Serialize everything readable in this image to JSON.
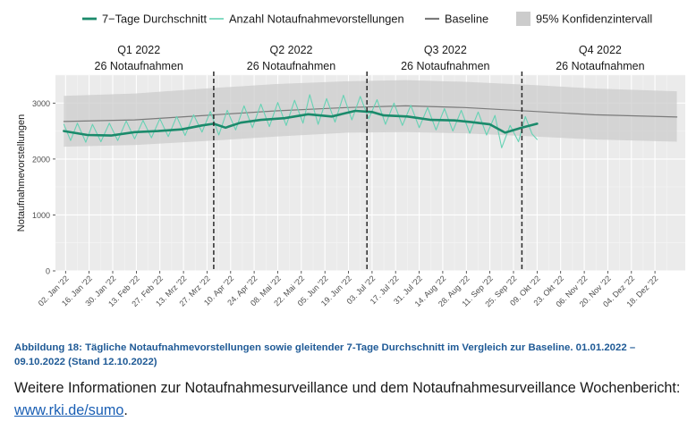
{
  "chart_data": {
    "type": "line",
    "ylabel": "Notaufnahmevorstellungen",
    "ylim": [
      0,
      3500
    ],
    "yticks": [
      0,
      1000,
      2000,
      3000
    ],
    "xlim": [
      "2021-12-27",
      "2023-01-05"
    ],
    "xticks": [
      {
        "date": "2022-01-02",
        "label": "02. Jan '22"
      },
      {
        "date": "2022-01-16",
        "label": "16. Jan '22"
      },
      {
        "date": "2022-01-30",
        "label": "30. Jan '22"
      },
      {
        "date": "2022-02-13",
        "label": "13. Feb '22"
      },
      {
        "date": "2022-02-27",
        "label": "27. Feb '22"
      },
      {
        "date": "2022-03-13",
        "label": "13. Mrz '22"
      },
      {
        "date": "2022-03-27",
        "label": "27. Mrz '22"
      },
      {
        "date": "2022-04-10",
        "label": "10. Apr '22"
      },
      {
        "date": "2022-04-24",
        "label": "24. Apr '22"
      },
      {
        "date": "2022-05-08",
        "label": "08. Mai '22"
      },
      {
        "date": "2022-05-22",
        "label": "22. Mai '22"
      },
      {
        "date": "2022-06-05",
        "label": "05. Jun '22"
      },
      {
        "date": "2022-06-19",
        "label": "19. Jun '22"
      },
      {
        "date": "2022-07-03",
        "label": "03. Jul '22"
      },
      {
        "date": "2022-07-17",
        "label": "17. Jul '22"
      },
      {
        "date": "2022-07-31",
        "label": "31. Jul '22"
      },
      {
        "date": "2022-08-14",
        "label": "14. Aug '22"
      },
      {
        "date": "2022-08-28",
        "label": "28. Aug '22"
      },
      {
        "date": "2022-09-11",
        "label": "11. Sep '22"
      },
      {
        "date": "2022-09-25",
        "label": "25. Sep '22"
      },
      {
        "date": "2022-10-09",
        "label": "09. Okt '22"
      },
      {
        "date": "2022-10-23",
        "label": "23. Okt '22"
      },
      {
        "date": "2022-11-06",
        "label": "06. Nov '22"
      },
      {
        "date": "2022-11-20",
        "label": "20. Nov '22"
      },
      {
        "date": "2022-12-04",
        "label": "04. Dez '22"
      },
      {
        "date": "2022-12-18",
        "label": "18. Dez '22"
      }
    ],
    "legend": {
      "placement": "top",
      "entries": [
        {
          "label": "7−Tage Durchschnitt",
          "color": "#1b8a6b"
        },
        {
          "label": "Anzahl Notaufnahmevorstellungen",
          "color": "#66d2b4"
        },
        {
          "label": "Baseline",
          "color": "#7a7a7a"
        },
        {
          "label": "95% Konfidenzintervall",
          "color": "#cccccc"
        }
      ]
    },
    "quarters": [
      {
        "title": "Q1 2022",
        "subtitle": "26 Notaufnahmen",
        "start": "2022-01-01",
        "end": "2022-03-31"
      },
      {
        "title": "Q2 2022",
        "subtitle": "26 Notaufnahmen",
        "start": "2022-04-01",
        "end": "2022-06-30"
      },
      {
        "title": "Q3 2022",
        "subtitle": "26 Notaufnahmen",
        "start": "2022-07-01",
        "end": "2022-09-30"
      },
      {
        "title": "Q4 2022",
        "subtitle": "26 Notaufnahmen",
        "start": "2022-10-01",
        "end": "2022-12-31"
      }
    ],
    "quarter_dividers": [
      "2022-03-31",
      "2022-06-30",
      "2022-09-30"
    ],
    "series": [
      {
        "name": "7−Tage Durchschnitt",
        "color": "#1b8a6b",
        "points": [
          [
            "2022-01-01",
            2500
          ],
          [
            "2022-01-15",
            2430
          ],
          [
            "2022-01-29",
            2420
          ],
          [
            "2022-02-12",
            2480
          ],
          [
            "2022-02-26",
            2500
          ],
          [
            "2022-03-12",
            2530
          ],
          [
            "2022-03-24",
            2600
          ],
          [
            "2022-03-31",
            2630
          ],
          [
            "2022-04-07",
            2560
          ],
          [
            "2022-04-16",
            2650
          ],
          [
            "2022-04-28",
            2700
          ],
          [
            "2022-05-12",
            2730
          ],
          [
            "2022-05-26",
            2800
          ],
          [
            "2022-06-09",
            2760
          ],
          [
            "2022-06-23",
            2860
          ],
          [
            "2022-07-03",
            2840
          ],
          [
            "2022-07-10",
            2780
          ],
          [
            "2022-07-24",
            2760
          ],
          [
            "2022-08-07",
            2700
          ],
          [
            "2022-08-21",
            2690
          ],
          [
            "2022-08-31",
            2660
          ],
          [
            "2022-09-11",
            2620
          ],
          [
            "2022-09-20",
            2470
          ],
          [
            "2022-09-30",
            2560
          ],
          [
            "2022-10-09",
            2630
          ]
        ]
      },
      {
        "name": "Anzahl Notaufnahmevorstellungen",
        "color": "#66d2b4",
        "points": [
          [
            "2022-01-01",
            2620
          ],
          [
            "2022-01-05",
            2330
          ],
          [
            "2022-01-09",
            2640
          ],
          [
            "2022-01-14",
            2300
          ],
          [
            "2022-01-18",
            2620
          ],
          [
            "2022-01-23",
            2310
          ],
          [
            "2022-01-28",
            2640
          ],
          [
            "2022-02-02",
            2330
          ],
          [
            "2022-02-07",
            2680
          ],
          [
            "2022-02-12",
            2360
          ],
          [
            "2022-02-17",
            2690
          ],
          [
            "2022-02-22",
            2380
          ],
          [
            "2022-02-27",
            2720
          ],
          [
            "2022-03-04",
            2400
          ],
          [
            "2022-03-09",
            2760
          ],
          [
            "2022-03-14",
            2420
          ],
          [
            "2022-03-19",
            2790
          ],
          [
            "2022-03-24",
            2480
          ],
          [
            "2022-03-29",
            2850
          ],
          [
            "2022-04-03",
            2430
          ],
          [
            "2022-04-08",
            2870
          ],
          [
            "2022-04-13",
            2520
          ],
          [
            "2022-04-18",
            2950
          ],
          [
            "2022-04-23",
            2560
          ],
          [
            "2022-04-28",
            2980
          ],
          [
            "2022-05-03",
            2580
          ],
          [
            "2022-05-08",
            3010
          ],
          [
            "2022-05-13",
            2600
          ],
          [
            "2022-05-18",
            3050
          ],
          [
            "2022-05-23",
            2640
          ],
          [
            "2022-05-27",
            3150
          ],
          [
            "2022-06-01",
            2620
          ],
          [
            "2022-06-06",
            3080
          ],
          [
            "2022-06-11",
            2660
          ],
          [
            "2022-06-16",
            3140
          ],
          [
            "2022-06-21",
            2700
          ],
          [
            "2022-06-26",
            3120
          ],
          [
            "2022-07-01",
            2720
          ],
          [
            "2022-07-06",
            3060
          ],
          [
            "2022-07-11",
            2620
          ],
          [
            "2022-07-16",
            3000
          ],
          [
            "2022-07-21",
            2600
          ],
          [
            "2022-07-26",
            2960
          ],
          [
            "2022-07-31",
            2560
          ],
          [
            "2022-08-05",
            2920
          ],
          [
            "2022-08-10",
            2520
          ],
          [
            "2022-08-15",
            2900
          ],
          [
            "2022-08-20",
            2500
          ],
          [
            "2022-08-25",
            2870
          ],
          [
            "2022-08-30",
            2460
          ],
          [
            "2022-09-04",
            2840
          ],
          [
            "2022-09-09",
            2430
          ],
          [
            "2022-09-14",
            2780
          ],
          [
            "2022-09-18",
            2200
          ],
          [
            "2022-09-23",
            2600
          ],
          [
            "2022-09-28",
            2310
          ],
          [
            "2022-10-02",
            2760
          ],
          [
            "2022-10-06",
            2450
          ],
          [
            "2022-10-09",
            2350
          ]
        ]
      },
      {
        "name": "Baseline",
        "color": "#7a7a7a",
        "points": [
          [
            "2022-01-01",
            2670
          ],
          [
            "2022-02-12",
            2700
          ],
          [
            "2022-03-26",
            2780
          ],
          [
            "2022-05-07",
            2860
          ],
          [
            "2022-06-18",
            2920
          ],
          [
            "2022-07-23",
            2950
          ],
          [
            "2022-08-27",
            2920
          ],
          [
            "2022-10-08",
            2850
          ],
          [
            "2022-11-12",
            2790
          ],
          [
            "2022-12-31",
            2750
          ]
        ]
      },
      {
        "name": "95% Konfidenzintervall",
        "color": "#cccccc",
        "upper": [
          [
            "2022-01-01",
            3130
          ],
          [
            "2022-02-12",
            3170
          ],
          [
            "2022-03-26",
            3260
          ],
          [
            "2022-05-07",
            3340
          ],
          [
            "2022-06-18",
            3390
          ],
          [
            "2022-07-23",
            3410
          ],
          [
            "2022-08-27",
            3380
          ],
          [
            "2022-10-08",
            3320
          ],
          [
            "2022-11-12",
            3260
          ],
          [
            "2022-12-31",
            3210
          ]
        ],
        "lower": [
          [
            "2022-01-01",
            2220
          ],
          [
            "2022-02-12",
            2250
          ],
          [
            "2022-03-26",
            2320
          ],
          [
            "2022-05-07",
            2400
          ],
          [
            "2022-06-18",
            2470
          ],
          [
            "2022-07-23",
            2480
          ],
          [
            "2022-08-27",
            2460
          ],
          [
            "2022-10-08",
            2400
          ],
          [
            "2022-11-12",
            2350
          ],
          [
            "2022-12-31",
            2310
          ]
        ]
      }
    ]
  },
  "caption": "Abbildung 18: Tägliche Notaufnahmevorstellungen sowie gleitender 7-Tage Durchschnitt im Vergleich zur Baseline. 01.01.2022 – 09.10.2022 (Stand 12.10.2022)",
  "info": {
    "text": "Weitere Informationen zur Notaufnahmesurveillance und dem Notaufnahmesurveillance Wochenbericht: ",
    "link_text": "www.rki.de/sumo",
    "suffix": "."
  }
}
